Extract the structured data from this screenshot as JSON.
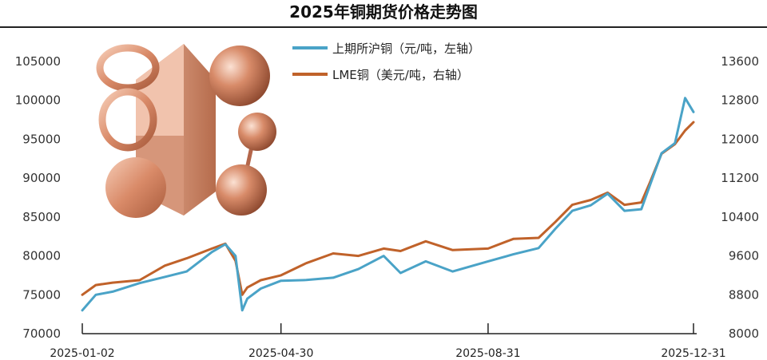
{
  "chart_data": {
    "type": "line",
    "title": "2025年铜期货价格走势图",
    "x_ticks": [
      "2025-01-02",
      "2025-04-30",
      "2025-08-31",
      "2025-12-31"
    ],
    "y_left": {
      "ticks": [
        70000,
        75000,
        80000,
        85000,
        90000,
        95000,
        100000,
        105000
      ],
      "ylim": [
        70000,
        105000
      ]
    },
    "y_right": {
      "ticks": [
        8000,
        8800,
        9600,
        10400,
        11200,
        12000,
        12800,
        13600
      ],
      "ylim": [
        8000,
        13600
      ]
    },
    "grid": false,
    "legend_position": "top-center",
    "series": [
      {
        "name": "上期所沪铜（元/吨，左轴）",
        "axis": "left",
        "color": "#4aa3c7",
        "x": [
          "2025-01-02",
          "2025-01-10",
          "2025-01-20",
          "2025-02-05",
          "2025-02-20",
          "2025-03-05",
          "2025-03-20",
          "2025-03-28",
          "2025-04-03",
          "2025-04-07",
          "2025-04-10",
          "2025-04-18",
          "2025-04-30",
          "2025-05-15",
          "2025-05-31",
          "2025-06-15",
          "2025-06-30",
          "2025-07-10",
          "2025-07-25",
          "2025-08-10",
          "2025-08-31",
          "2025-09-15",
          "2025-09-30",
          "2025-10-10",
          "2025-10-20",
          "2025-10-31",
          "2025-11-10",
          "2025-11-20",
          "2025-11-30",
          "2025-12-05",
          "2025-12-12",
          "2025-12-20",
          "2025-12-26",
          "2025-12-31"
        ],
        "values": [
          73000,
          75000,
          75400,
          76500,
          77300,
          78000,
          80500,
          81500,
          80000,
          73000,
          74500,
          75800,
          76800,
          76900,
          77200,
          78300,
          80000,
          77800,
          79300,
          78000,
          79300,
          80200,
          81000,
          83500,
          85800,
          86500,
          88000,
          85800,
          86000,
          89000,
          93200,
          94500,
          100300,
          98500
        ]
      },
      {
        "name": "LME铜（美元/吨，右轴）",
        "axis": "right",
        "color": "#c0622a",
        "x": [
          "2025-01-02",
          "2025-01-10",
          "2025-01-20",
          "2025-02-05",
          "2025-02-20",
          "2025-03-05",
          "2025-03-20",
          "2025-03-28",
          "2025-04-03",
          "2025-04-07",
          "2025-04-10",
          "2025-04-18",
          "2025-04-30",
          "2025-05-15",
          "2025-05-31",
          "2025-06-15",
          "2025-06-30",
          "2025-07-10",
          "2025-07-25",
          "2025-08-10",
          "2025-08-31",
          "2025-09-15",
          "2025-09-30",
          "2025-10-10",
          "2025-10-20",
          "2025-10-31",
          "2025-11-10",
          "2025-11-20",
          "2025-11-30",
          "2025-12-05",
          "2025-12-12",
          "2025-12-20",
          "2025-12-26",
          "2025-12-31"
        ],
        "values": [
          8800,
          9000,
          9050,
          9100,
          9400,
          9550,
          9750,
          9850,
          9500,
          8800,
          8950,
          9100,
          9200,
          9450,
          9650,
          9600,
          9750,
          9700,
          9900,
          9720,
          9750,
          9950,
          9970,
          10300,
          10650,
          10750,
          10900,
          10650,
          10700,
          11100,
          11700,
          11900,
          12180,
          12350
        ]
      }
    ]
  }
}
